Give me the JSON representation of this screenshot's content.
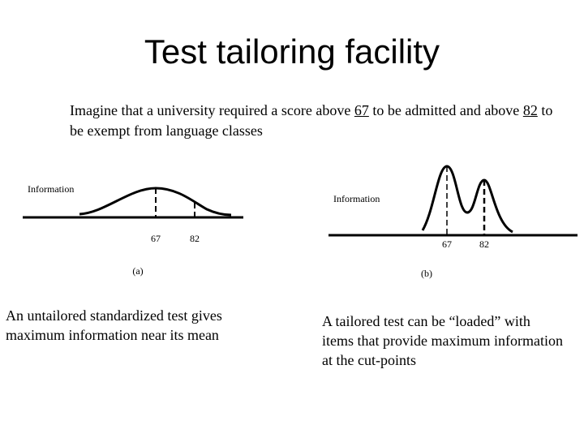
{
  "title": "Test tailoring facility",
  "intro": {
    "part1": "Imagine that a university required a score above ",
    "cut1": "67",
    "part2": " to be admitted and above ",
    "cut2": "82",
    "part3": " to be exempt from language classes"
  },
  "figure_a": {
    "ylabel": "Information",
    "ticks": [
      "67",
      "82"
    ],
    "label": "(a)",
    "caption": "An untailored standardized test gives maximum information near its mean"
  },
  "figure_b": {
    "ylabel": "Information",
    "ticks": [
      "67",
      "82"
    ],
    "label": "(b)",
    "caption": "A tailored test can be “loaded” with items that provide maximum information at the cut-points"
  }
}
